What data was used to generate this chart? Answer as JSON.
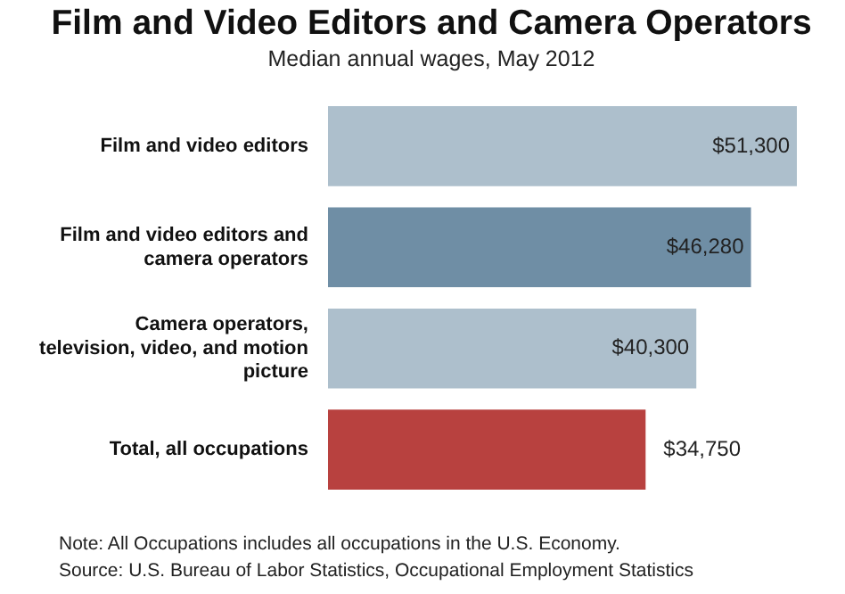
{
  "chart_data": {
    "type": "bar",
    "orientation": "horizontal",
    "title": "Film and Video Editors and Camera Operators",
    "subtitle": "Median annual wages, May 2012",
    "categories": [
      "Film and video editors",
      "Film and video editors and camera operators",
      "Camera operators, television, video, and motion picture",
      "Total, all occupations"
    ],
    "values": [
      51300,
      46280,
      40300,
      34750
    ],
    "colors": [
      "#adbfcc",
      "#6f8ea5",
      "#adbfcc",
      "#b8413f"
    ],
    "value_labels": [
      "$51,300",
      "$46,280",
      "$40,300",
      "$34,750"
    ],
    "xlim": [
      0,
      51300
    ],
    "tick_labels": "y",
    "legend": false,
    "annotations": [
      "Note: All Occupations includes all occupations in the U.S. Economy.",
      "Source: U.S. Bureau of Labor Statistics, Occupational Employment Statistics"
    ]
  }
}
